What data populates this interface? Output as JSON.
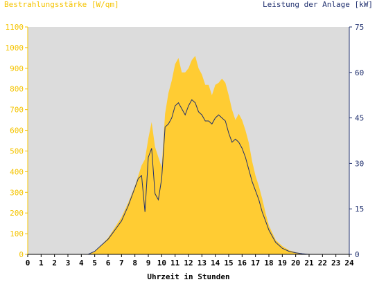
{
  "chart_data": {
    "type": "area",
    "title_left": "Bestrahlungsstärke [W/qm]",
    "title_right": "Leistung der Anlage [kW]",
    "xlabel": "Uhrzeit in Stunden",
    "xlim": [
      0,
      24
    ],
    "x_ticks": [
      "0",
      "1",
      "2",
      "3",
      "4",
      "5",
      "6",
      "7",
      "8",
      "9",
      "10",
      "11",
      "12",
      "13",
      "14",
      "15",
      "16",
      "17",
      "18",
      "19",
      "20",
      "21",
      "22",
      "23",
      "24"
    ],
    "y_left": {
      "lim": [
        0,
        1100
      ],
      "ticks": [
        "0",
        "100",
        "200",
        "300",
        "400",
        "500",
        "600",
        "700",
        "800",
        "900",
        "1000",
        "1100"
      ]
    },
    "y_right": {
      "lim": [
        0,
        75
      ],
      "ticks": [
        "0",
        "15",
        "30",
        "45",
        "60",
        "75"
      ]
    },
    "grid": false,
    "colors": {
      "irradiance": "#ffcc33",
      "power": "#1f2f6e",
      "plot_bg": "#dcdcdc",
      "left_axis": "#f5c400",
      "right_axis": "#1f2f6e"
    },
    "series": [
      {
        "name": "Bestrahlungsstärke [W/qm]",
        "axis": "left",
        "x": [
          4.5,
          5.0,
          5.5,
          6.0,
          6.5,
          7.0,
          7.5,
          8.0,
          8.25,
          8.5,
          8.75,
          9.0,
          9.25,
          9.5,
          9.75,
          10.0,
          10.25,
          10.5,
          10.75,
          11.0,
          11.25,
          11.5,
          11.75,
          12.0,
          12.25,
          12.5,
          12.75,
          13.0,
          13.25,
          13.5,
          13.75,
          14.0,
          14.25,
          14.5,
          14.75,
          15.0,
          15.25,
          15.5,
          15.75,
          16.0,
          16.25,
          16.5,
          16.75,
          17.0,
          17.25,
          17.5,
          17.75,
          18.0,
          18.5,
          19.0,
          19.5,
          20.0,
          20.5,
          21.0
        ],
        "values": [
          0,
          15,
          45,
          80,
          130,
          180,
          250,
          330,
          380,
          430,
          460,
          560,
          640,
          520,
          470,
          420,
          680,
          780,
          840,
          920,
          950,
          880,
          880,
          900,
          940,
          960,
          900,
          870,
          820,
          820,
          770,
          820,
          830,
          850,
          830,
          770,
          700,
          650,
          680,
          650,
          600,
          540,
          450,
          380,
          330,
          270,
          200,
          140,
          70,
          40,
          20,
          10,
          3,
          0
        ]
      },
      {
        "name": "Leistung der Anlage [kW]",
        "axis": "right",
        "x": [
          4.5,
          5.0,
          5.5,
          6.0,
          6.5,
          7.0,
          7.5,
          8.0,
          8.25,
          8.5,
          8.75,
          9.0,
          9.25,
          9.5,
          9.75,
          10.0,
          10.25,
          10.5,
          10.75,
          11.0,
          11.25,
          11.5,
          11.75,
          12.0,
          12.25,
          12.5,
          12.75,
          13.0,
          13.25,
          13.5,
          13.75,
          14.0,
          14.25,
          14.5,
          14.75,
          15.0,
          15.25,
          15.5,
          15.75,
          16.0,
          16.25,
          16.5,
          16.75,
          17.0,
          17.25,
          17.5,
          17.75,
          18.0,
          18.5,
          19.0,
          19.5,
          20.0,
          20.5,
          21.0
        ],
        "values": [
          0,
          1,
          3,
          5,
          8,
          11,
          16,
          22,
          25,
          26,
          14,
          32,
          35,
          20,
          18,
          25,
          42,
          43,
          45,
          49,
          50,
          48,
          46,
          49,
          51,
          50,
          47,
          46,
          44,
          44,
          43,
          45,
          46,
          45,
          44,
          40,
          37,
          38,
          37,
          35,
          32,
          28,
          24,
          21,
          18,
          14,
          11,
          8,
          4,
          2,
          1,
          0.5,
          0.2,
          0
        ]
      }
    ]
  }
}
